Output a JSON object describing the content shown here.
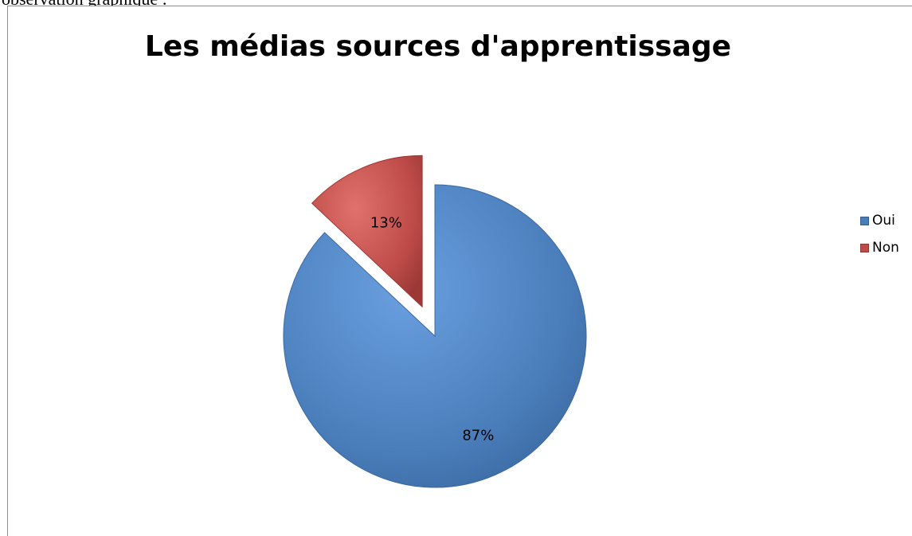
{
  "document": {
    "caption_text": "observation graphique :"
  },
  "chart_data": {
    "type": "pie",
    "title": "Les médias sources d'apprentissage",
    "categories": [
      "Oui",
      "Non"
    ],
    "values": [
      87,
      13
    ],
    "labels": [
      "87%",
      "13%"
    ],
    "colors": [
      "#4a7ebb",
      "#be4b48"
    ],
    "legend_position": "right",
    "exploded": [
      "Non"
    ]
  }
}
